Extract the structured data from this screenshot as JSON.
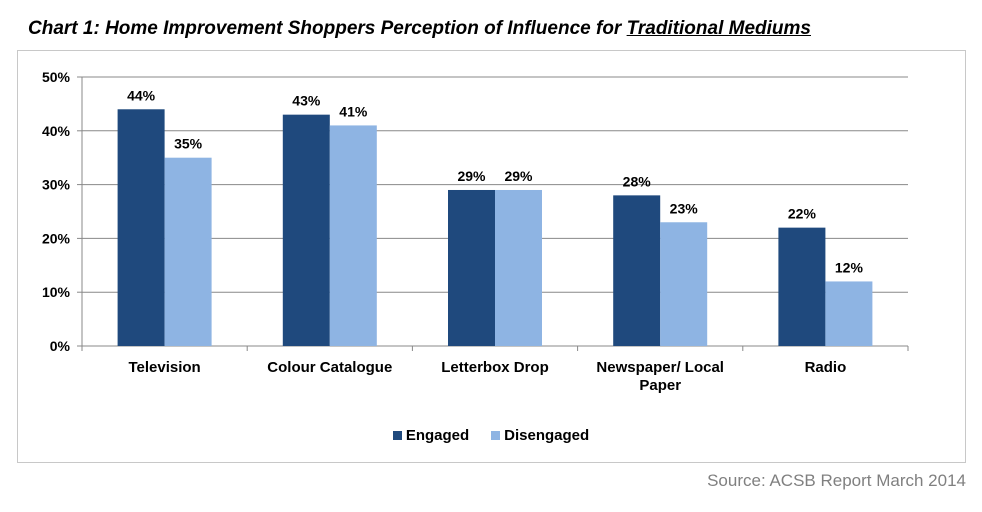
{
  "title": {
    "prefix": "Chart 1: Home Improvement Shoppers Perception of Influence for ",
    "underlined": "Traditional Mediums"
  },
  "source": "Source: ACSB Report March 2014",
  "chart_data": {
    "type": "bar",
    "categories": [
      "Television",
      "Colour Catalogue",
      "Letterbox Drop",
      "Newspaper/ Local Paper",
      "Radio"
    ],
    "category_lines": [
      [
        "Television"
      ],
      [
        "Colour Catalogue"
      ],
      [
        "Letterbox Drop"
      ],
      [
        "Newspaper/ Local",
        "Paper"
      ],
      [
        "Radio"
      ]
    ],
    "series": [
      {
        "name": "Engaged",
        "values": [
          44,
          43,
          29,
          28,
          22
        ],
        "color": "#1f497d"
      },
      {
        "name": "Disengaged",
        "values": [
          35,
          41,
          29,
          23,
          12
        ],
        "color": "#8eb4e3"
      }
    ],
    "value_labels": [
      [
        "44%",
        "43%",
        "29%",
        "28%",
        "22%"
      ],
      [
        "35%",
        "41%",
        "29%",
        "23%",
        "12%"
      ]
    ],
    "ylim": [
      0,
      50
    ],
    "yticks": [
      0,
      10,
      20,
      30,
      40,
      50
    ],
    "ytick_labels": [
      "0%",
      "10%",
      "20%",
      "30%",
      "40%",
      "50%"
    ],
    "grid": true,
    "legend": "bottom",
    "xlabel": "",
    "ylabel": ""
  }
}
